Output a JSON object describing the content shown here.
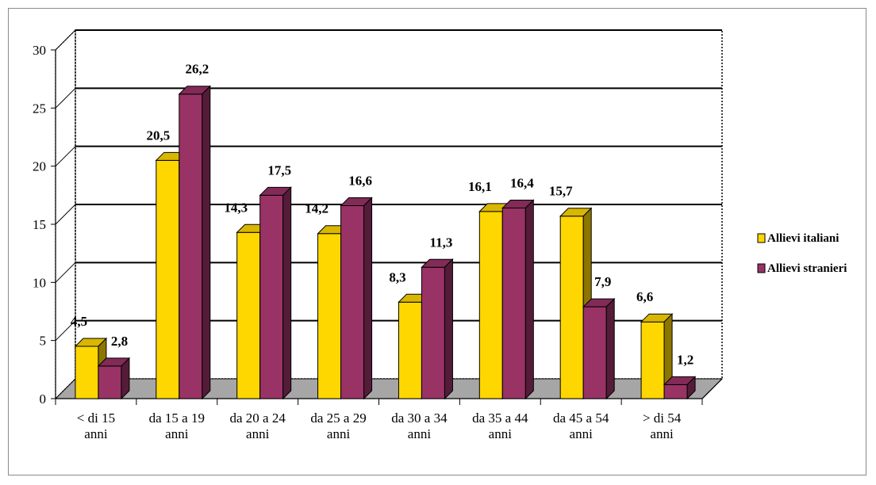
{
  "chart_data": {
    "type": "bar",
    "categories": [
      [
        "< di 15",
        "anni"
      ],
      [
        "da 15 a 19",
        "anni"
      ],
      [
        "da 20 a 24",
        "anni"
      ],
      [
        "da 25 a 29",
        "anni"
      ],
      [
        "da 30 a 34",
        "anni"
      ],
      [
        "da 35 a 44",
        "anni"
      ],
      [
        "da 45 a 54",
        "anni"
      ],
      [
        "> di 54",
        "anni"
      ]
    ],
    "series": [
      {
        "name": "Allievi italiani",
        "color": "#FFD700",
        "values": [
          4.5,
          20.5,
          14.3,
          14.2,
          8.3,
          16.1,
          15.7,
          6.6
        ],
        "labels": [
          "4,5",
          "20,5",
          "14,3",
          "14,2",
          "8,3",
          "16,1",
          "15,7",
          "6,6"
        ]
      },
      {
        "name": "Allievi stranieri",
        "color": "#993366",
        "values": [
          2.8,
          26.2,
          17.5,
          16.6,
          11.3,
          16.4,
          7.9,
          1.2
        ],
        "labels": [
          "2,8",
          "26,2",
          "17,5",
          "16,6",
          "11,3",
          "16,4",
          "7,9",
          "1,2"
        ]
      }
    ],
    "ylim": [
      0,
      30
    ],
    "yticks": [
      0,
      5,
      10,
      15,
      20,
      25,
      30
    ],
    "grid": true,
    "legend": "right",
    "title": "",
    "xlabel": "",
    "ylabel": ""
  }
}
